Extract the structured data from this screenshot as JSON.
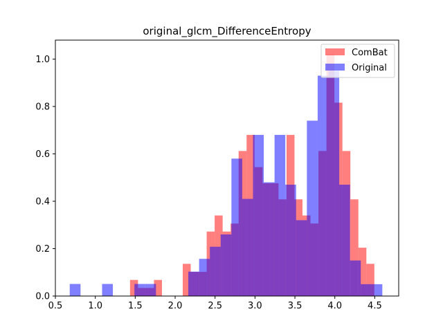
{
  "chart_data": {
    "type": "bar",
    "title": "original_glcm_DifferenceEntropy",
    "xlabel": "",
    "ylabel": "",
    "xlim": [
      0.5,
      4.8
    ],
    "ylim": [
      0.0,
      1.08
    ],
    "xticks": [
      "0.5",
      "1.0",
      "1.5",
      "2.0",
      "2.5",
      "3.0",
      "3.5",
      "4.0",
      "4.5"
    ],
    "yticks": [
      "0.0",
      "0.2",
      "0.4",
      "0.6",
      "0.8",
      "1.0"
    ],
    "grid": false,
    "legend_position": "top-right",
    "series": [
      {
        "name": "ComBat",
        "color": "#ff0000",
        "alpha": 0.5,
        "bins": [
          [
            1.435,
            1.535,
            0.068
          ],
          [
            1.535,
            1.635,
            0.034
          ],
          [
            1.635,
            1.735,
            0.034
          ],
          [
            1.735,
            1.835,
            0.068
          ],
          [
            2.095,
            2.195,
            0.136
          ],
          [
            2.195,
            2.295,
            0.102
          ],
          [
            2.295,
            2.395,
            0.102
          ],
          [
            2.395,
            2.495,
            0.272
          ],
          [
            2.495,
            2.595,
            0.34
          ],
          [
            2.595,
            2.695,
            0.272
          ],
          [
            2.695,
            2.795,
            0.306
          ],
          [
            2.795,
            2.895,
            0.612
          ],
          [
            2.895,
            2.995,
            0.68
          ],
          [
            2.995,
            3.095,
            0.544
          ],
          [
            3.095,
            3.195,
            0.476
          ],
          [
            3.195,
            3.295,
            0.476
          ],
          [
            3.295,
            3.395,
            0.408
          ],
          [
            3.395,
            3.495,
            0.68
          ],
          [
            3.495,
            3.595,
            0.408
          ],
          [
            3.595,
            3.695,
            0.34
          ],
          [
            3.695,
            3.795,
            0.306
          ],
          [
            3.795,
            3.895,
            0.612
          ],
          [
            3.895,
            3.995,
            1.02
          ],
          [
            3.995,
            4.095,
            0.816
          ],
          [
            4.095,
            4.195,
            0.612
          ],
          [
            4.195,
            4.295,
            0.408
          ],
          [
            4.295,
            4.395,
            0.204
          ],
          [
            4.395,
            4.495,
            0.136
          ],
          [
            4.495,
            4.595,
            0.0
          ]
        ]
      },
      {
        "name": "Original",
        "color": "#0000ff",
        "alpha": 0.5,
        "bins": [
          [
            0.68,
            0.815,
            0.051
          ],
          [
            1.085,
            1.22,
            0.051
          ],
          [
            1.49,
            1.625,
            0.051
          ],
          [
            1.625,
            1.76,
            0.051
          ],
          [
            2.165,
            2.3,
            0.103
          ],
          [
            2.3,
            2.435,
            0.157
          ],
          [
            2.435,
            2.57,
            0.208
          ],
          [
            2.57,
            2.705,
            0.26
          ],
          [
            2.705,
            2.84,
            0.58
          ],
          [
            2.84,
            2.975,
            0.41
          ],
          [
            2.975,
            3.11,
            0.68
          ],
          [
            3.11,
            3.245,
            0.48
          ],
          [
            3.245,
            3.38,
            0.68
          ],
          [
            3.38,
            3.515,
            0.47
          ],
          [
            3.515,
            3.65,
            0.32
          ],
          [
            3.65,
            3.785,
            0.74
          ],
          [
            3.785,
            3.92,
            0.93
          ],
          [
            3.92,
            4.055,
            0.95
          ],
          [
            4.055,
            4.19,
            0.47
          ],
          [
            4.19,
            4.325,
            0.15
          ],
          [
            4.325,
            4.46,
            0.05
          ],
          [
            4.46,
            4.595,
            0.05
          ]
        ]
      }
    ]
  }
}
